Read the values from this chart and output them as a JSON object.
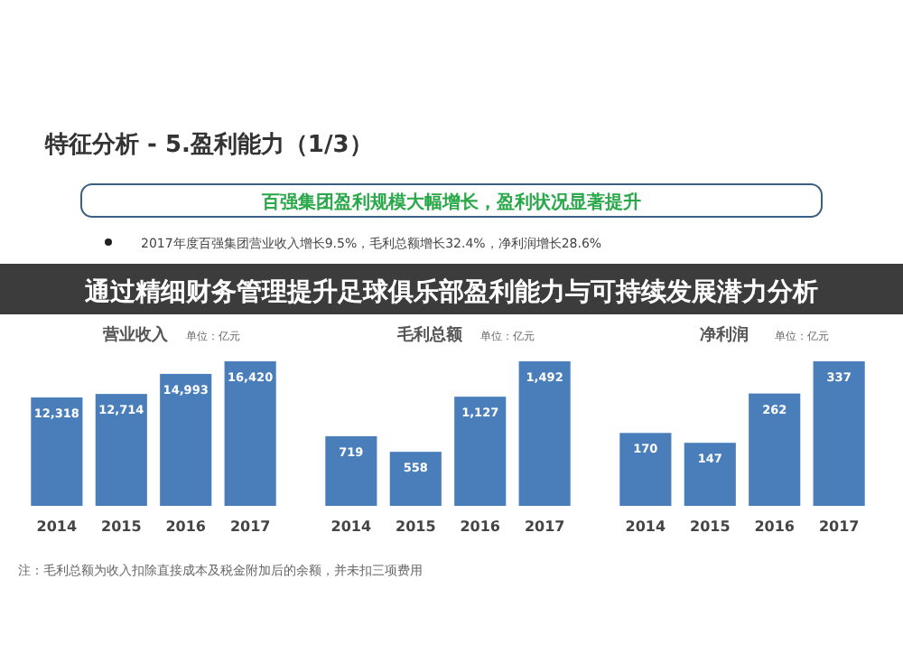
{
  "chart_data": [
    {
      "type": "other",
      "title": "特征分析 - 5.盈利能力（1/3）",
      "subtitle": "百强集团盈利规模大幅增长，盈利状况显著提升",
      "annotations": [
        "2017年度百强集团营业收入增长9.5%，毛利总额增长32.4%，净利润增长28.6%",
        "通过精细财务管理提升足球俱乐部盈利能力与可持续发展潜力分析",
        "注：毛利总额为收入扣除直接成本及税金附加后的余额，并未扣三项费用"
      ]
    },
    {
      "type": "bar",
      "title": "营业收入",
      "subtitle": "单位：亿元",
      "categories": [
        "2014",
        "2015",
        "2016",
        "2017"
      ],
      "values": [
        12318,
        12714,
        14993,
        16420
      ],
      "value_labels": [
        "12,318",
        "12,714",
        "14,993",
        "16,420"
      ],
      "color": "#4a7ebb"
    },
    {
      "type": "bar",
      "title": "毛利总额",
      "subtitle": "单位：亿元",
      "categories": [
        "2014",
        "2015",
        "2016",
        "2017"
      ],
      "values": [
        719,
        558,
        1127,
        1492
      ],
      "value_labels": [
        "719",
        "558",
        "1,127",
        "1,492"
      ],
      "color": "#4a7ebb"
    },
    {
      "type": "bar",
      "title": "净利润",
      "subtitle": "单位：亿元",
      "categories": [
        "2014",
        "2015",
        "2016",
        "2017"
      ],
      "values": [
        170,
        147,
        262,
        337
      ],
      "data_labels": true,
      "color": "#4a7ebb"
    }
  ]
}
